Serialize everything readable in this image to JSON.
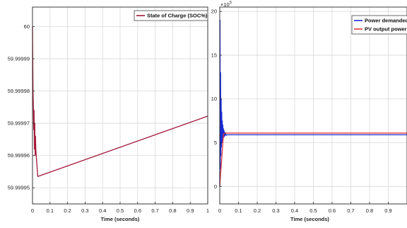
{
  "chart_data": [
    {
      "type": "line",
      "title": "",
      "xlabel": "Time (seconds)",
      "ylabel": "",
      "xlim": [
        0,
        1
      ],
      "ylim": [
        59.999945,
        60.000006
      ],
      "grid": true,
      "legend_position": "top-right",
      "x_ticks": [
        "0",
        "0.1",
        "0.2",
        "0.3",
        "0.4",
        "0.5",
        "0.6",
        "0.7",
        "0.8",
        "0.9",
        "1"
      ],
      "x_tick_values": [
        0,
        0.1,
        0.2,
        0.3,
        0.4,
        0.5,
        0.6,
        0.7,
        0.8,
        0.9,
        1
      ],
      "y_ticks": [
        "59.99995",
        "59.99996",
        "59.99997",
        "59.99998",
        "59.99999",
        "60"
      ],
      "y_tick_values": [
        59.99995,
        59.99996,
        59.99997,
        59.99998,
        59.99999,
        60.0
      ],
      "series": [
        {
          "name": "State of Charge (SOC%)",
          "color": "#a3183a",
          "x": [
            0,
            0.001,
            0.003,
            0.005,
            0.007,
            0.009,
            0.011,
            0.013,
            0.015,
            0.017,
            0.019,
            0.02,
            0.03,
            1.0
          ],
          "y": [
            60.0,
            59.999992,
            59.99998,
            59.999975,
            59.999968,
            59.999974,
            59.999962,
            59.99997,
            59.99996,
            59.999966,
            59.999962,
            59.999961,
            59.9999535,
            59.9999722
          ]
        }
      ]
    },
    {
      "type": "line",
      "title": "",
      "xlabel": "Time (seconds)",
      "ylabel": "",
      "y_exponent": "×10^5",
      "y_exponent_base": "×10",
      "y_exponent_power": "5",
      "xlim": [
        0,
        1
      ],
      "ylim": [
        -2,
        20.5
      ],
      "grid": true,
      "legend_position": "top-right",
      "x_ticks": [
        "0",
        "0.1",
        "0.2",
        "0.3",
        "0.4",
        "0.5",
        "0.6",
        "0.7",
        "0.8",
        "0.9"
      ],
      "x_tick_values": [
        0,
        0.1,
        0.2,
        0.3,
        0.4,
        0.5,
        0.6,
        0.7,
        0.8,
        0.9
      ],
      "y_ticks": [
        "0",
        "5",
        "10",
        "15",
        "20"
      ],
      "y_tick_values": [
        0,
        5,
        10,
        15,
        20
      ],
      "series": [
        {
          "name": "Power demanded",
          "color": "#1a2bd6",
          "x": [
            0,
            0.0015,
            0.003,
            0.0045,
            0.006,
            0.0075,
            0.009,
            0.0105,
            0.012,
            0.0135,
            0.015,
            0.0165,
            0.018,
            0.0195,
            0.021,
            0.0225,
            0.024,
            0.026,
            0.028,
            0.03,
            0.035,
            0.04,
            1.0
          ],
          "y": [
            0,
            19.0,
            2.0,
            13.0,
            3.5,
            10.0,
            4.5,
            8.5,
            5.0,
            7.5,
            5.2,
            7.0,
            5.4,
            6.6,
            5.6,
            6.4,
            5.7,
            6.2,
            5.8,
            6.1,
            5.85,
            5.9,
            5.9
          ]
        },
        {
          "name": "PV output  power",
          "color": "#e03a3a",
          "x": [
            0,
            0.02,
            0.025,
            0.03,
            1.0
          ],
          "y": [
            0,
            6.0,
            6.05,
            6.1,
            6.1
          ]
        }
      ]
    }
  ]
}
